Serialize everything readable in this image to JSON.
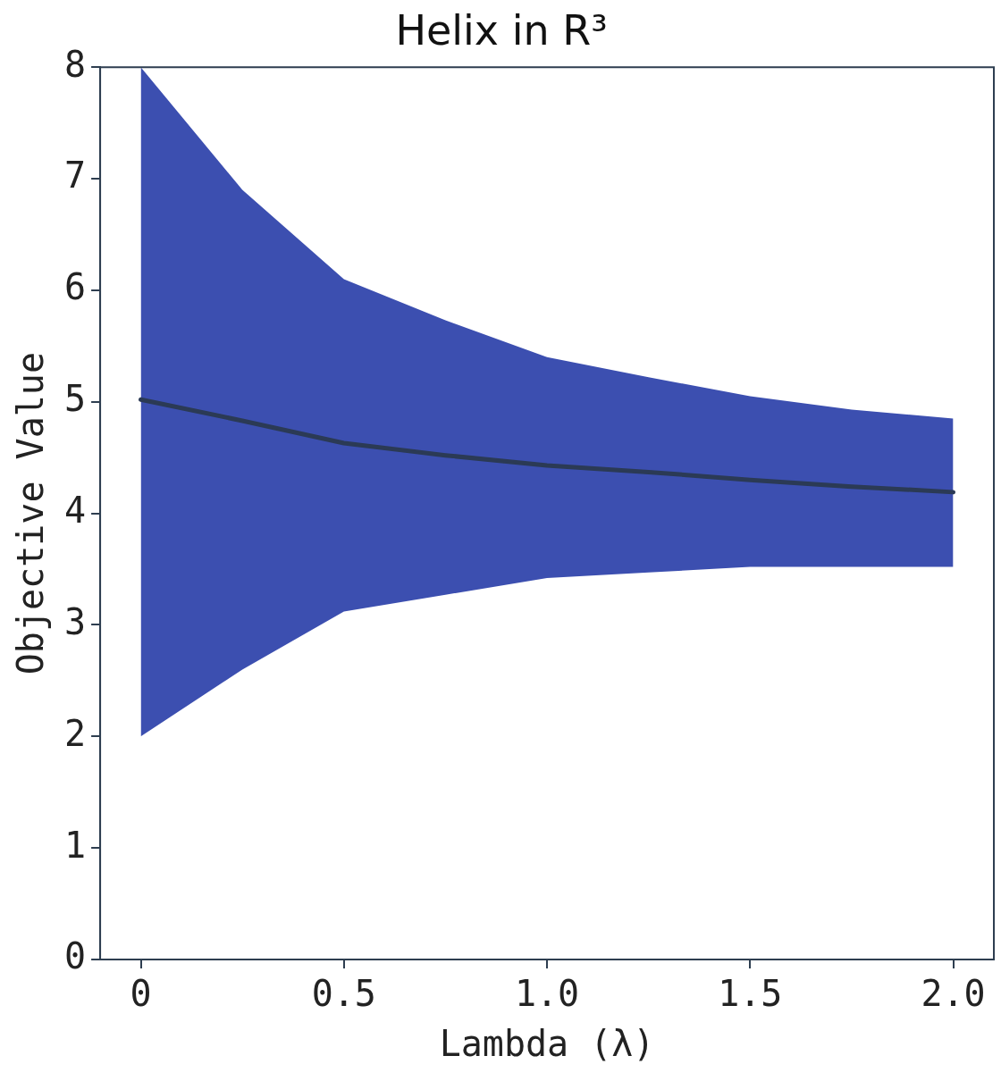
{
  "chart_data": {
    "type": "line",
    "title": "Helix in R³",
    "xlabel": "Lambda (λ)",
    "ylabel": "Objective Value",
    "x": [
      0,
      0.25,
      0.5,
      0.75,
      1.0,
      1.25,
      1.5,
      1.75,
      2.0
    ],
    "series": [
      {
        "color": "#2b3a55",
        "values": [
          5.02,
          4.83,
          4.63,
          4.52,
          4.43,
          4.37,
          4.3,
          4.24,
          4.19
        ],
        "lower": [
          2.0,
          2.6,
          3.12,
          3.27,
          3.42,
          3.47,
          3.52,
          3.52,
          3.52
        ],
        "upper": [
          8.0,
          6.9,
          6.1,
          5.73,
          5.4,
          5.22,
          5.05,
          4.93,
          4.85
        ]
      }
    ],
    "xlim": [
      -0.1,
      2.1
    ],
    "xticks": [
      0,
      0.5,
      {
        "value": 1,
        "label": "1.0"
      },
      1.5,
      {
        "value": 2,
        "label": "2.0"
      }
    ],
    "ylim": [
      0,
      8
    ],
    "yticks": [
      0,
      1,
      2,
      3,
      4,
      5,
      6,
      7,
      8
    ],
    "grid": false,
    "legend": false,
    "marker": "none",
    "line_style": "solid"
  }
}
